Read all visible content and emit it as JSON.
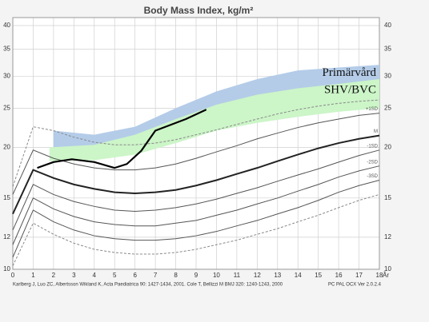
{
  "chart_data": {
    "type": "line",
    "title": "Body Mass Index, kg/m²",
    "x_unit": "År",
    "log_y": true,
    "grid": true,
    "xlim": [
      0,
      18
    ],
    "xticks": [
      0,
      1,
      2,
      3,
      4,
      5,
      6,
      7,
      8,
      9,
      10,
      11,
      12,
      13,
      14,
      15,
      16,
      17,
      18
    ],
    "ylim": [
      10,
      40
    ],
    "yticks": [
      10,
      12,
      15,
      20,
      25,
      30,
      35,
      40
    ],
    "x": [
      0,
      1,
      2,
      3,
      4,
      5,
      6,
      7,
      8,
      9,
      10,
      11,
      12,
      13,
      14,
      15,
      16,
      17,
      18
    ],
    "series": [
      {
        "color": "#888888",
        "dash": true,
        "width": 1,
        "values": [
          16,
          22.5,
          22,
          21.2,
          20.6,
          20.3,
          20.3,
          20.5,
          20.9,
          21.5,
          22.1,
          22.8,
          23.5,
          24.2,
          24.8,
          25.3,
          25.7,
          26,
          26.2
        ]
      },
      {
        "name": "+1SD",
        "color": "#555555",
        "dash": false,
        "width": 1,
        "values": [
          15.3,
          19.7,
          18.8,
          18.2,
          17.8,
          17.6,
          17.6,
          17.8,
          18.2,
          18.8,
          19.5,
          20.2,
          21,
          21.7,
          22.4,
          23,
          23.5,
          24,
          24.3
        ]
      },
      {
        "name": "M",
        "color": "#222222",
        "dash": false,
        "width": 2,
        "values": [
          13.7,
          17.6,
          16.8,
          16.2,
          15.8,
          15.5,
          15.4,
          15.5,
          15.7,
          16.1,
          16.6,
          17.2,
          17.8,
          18.5,
          19.2,
          19.9,
          20.5,
          21,
          21.4
        ]
      },
      {
        "name": "-1SD",
        "color": "#555555",
        "dash": false,
        "width": 1,
        "values": [
          12.5,
          16.2,
          15.3,
          14.7,
          14.3,
          14,
          13.9,
          14,
          14.2,
          14.5,
          14.9,
          15.4,
          15.9,
          16.5,
          17.1,
          17.7,
          18.4,
          19.1,
          19.7
        ]
      },
      {
        "name": "-2SD",
        "color": "#555555",
        "dash": false,
        "width": 1,
        "values": [
          11.5,
          15,
          14.1,
          13.5,
          13.1,
          12.9,
          12.8,
          12.8,
          13,
          13.2,
          13.6,
          14,
          14.5,
          15,
          15.6,
          16.2,
          16.9,
          17.5,
          18
        ]
      },
      {
        "name": "-3SD",
        "color": "#555555",
        "dash": false,
        "width": 1,
        "values": [
          10.7,
          14,
          13.1,
          12.5,
          12.1,
          11.9,
          11.8,
          11.8,
          11.9,
          12.1,
          12.4,
          12.8,
          13.2,
          13.7,
          14.2,
          14.8,
          15.5,
          16.1,
          16.6
        ]
      },
      {
        "color": "#888888",
        "dash": true,
        "width": 1,
        "values": [
          10.2,
          13,
          12.2,
          11.6,
          11.2,
          11,
          10.9,
          10.9,
          11,
          11.2,
          11.5,
          11.8,
          12.2,
          12.6,
          13.1,
          13.6,
          14.2,
          14.8,
          15.3
        ]
      }
    ],
    "bands": [
      {
        "name": "Primärvård",
        "color": "#b4cce8",
        "x": [
          2,
          4,
          6,
          8,
          10,
          12,
          14,
          16,
          18
        ],
        "lower": [
          19.5,
          19.5,
          20.5,
          22.5,
          24.5,
          26,
          27,
          27.5,
          28
        ],
        "upper": [
          22,
          21.5,
          22.5,
          25,
          27.5,
          29.5,
          31,
          31.5,
          32
        ]
      },
      {
        "name": "SHV/BVC",
        "color": "#ccf5c8",
        "x": [
          1.8,
          4,
          6,
          8,
          10,
          12,
          14,
          16,
          18
        ],
        "lower": [
          18.5,
          18.6,
          19.2,
          20.5,
          22,
          23,
          23.8,
          24.5,
          25
        ],
        "upper": [
          20,
          20.3,
          21.5,
          23.5,
          25.5,
          27,
          28,
          28.7,
          29.5
        ]
      }
    ],
    "patient": {
      "color": "#000000",
      "x": [
        1.2,
        2,
        2.9,
        4,
        5,
        5.6,
        6.3,
        7,
        8.5,
        9.5
      ],
      "values": [
        17.8,
        18.4,
        18.7,
        18.4,
        17.8,
        18.2,
        19.6,
        22,
        23.5,
        24.8
      ]
    },
    "footer_left": "Karlberg J, Luo ZC, Albertsson Wikland K, Acta Paediatrica 90: 1427-1434, 2001.   Cole T, Bellizzi M  BMJ 320: 1240-1243, 2000",
    "footer_right": "PC PAL OCX Ver 2.0.2.4"
  }
}
